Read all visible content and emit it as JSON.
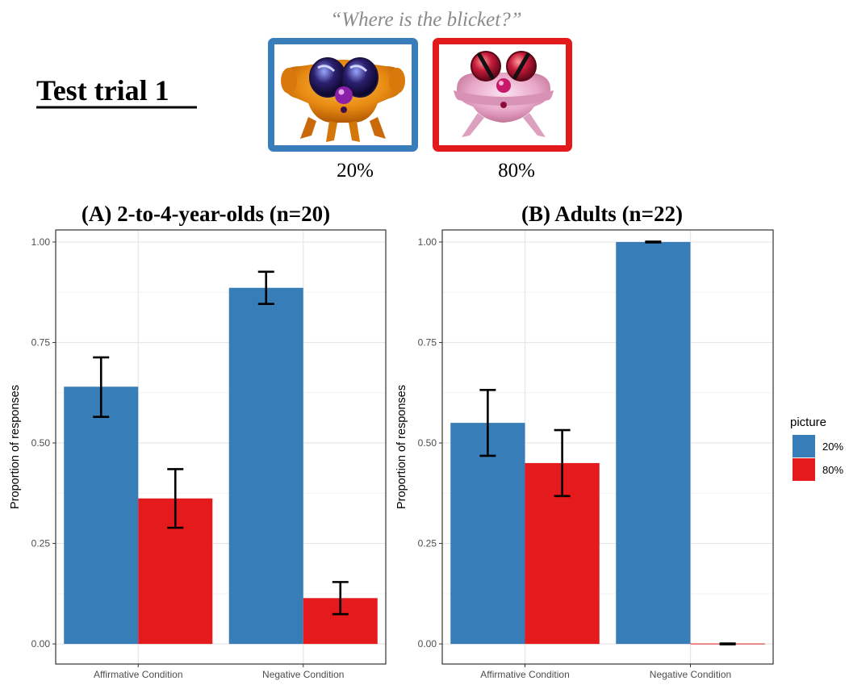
{
  "header": {
    "question": "“Where is the blicket?”",
    "trial_title": "Test trial 1",
    "pictures": [
      {
        "label": "20%",
        "frame_color": "#3A7DBB",
        "icon": "orange-alien-creature-icon"
      },
      {
        "label": "80%",
        "frame_color": "#E31A1C",
        "icon": "pink-alien-creature-icon"
      }
    ]
  },
  "legend": {
    "title": "picture",
    "items": [
      {
        "label": "20%",
        "color": "#377EB8"
      },
      {
        "label": "80%",
        "color": "#E41A1C"
      }
    ]
  },
  "chart_data": [
    {
      "type": "bar",
      "title": "(A) 2-to-4-year-olds (n=20)",
      "xlabel": "",
      "ylabel": "Proportion of responses",
      "categories": [
        "Affirmative Condition",
        "Negative Condition"
      ],
      "ylim": [
        0,
        1.03
      ],
      "yticks": [
        "0.00",
        "0.25",
        "0.50",
        "0.75",
        "1.00"
      ],
      "grid": true,
      "series": [
        {
          "name": "20%",
          "color": "#377EB8",
          "values": [
            0.64,
            0.886
          ],
          "err_low": [
            0.565,
            0.846
          ],
          "err_high": [
            0.713,
            0.926
          ]
        },
        {
          "name": "80%",
          "color": "#E41A1C",
          "values": [
            0.362,
            0.114
          ],
          "err_low": [
            0.289,
            0.074
          ],
          "err_high": [
            0.435,
            0.154
          ]
        }
      ]
    },
    {
      "type": "bar",
      "title": "(B) Adults (n=22)",
      "xlabel": "",
      "ylabel": "Proportion of responses",
      "categories": [
        "Affirmative Condition",
        "Negative Condition"
      ],
      "ylim": [
        0,
        1.03
      ],
      "yticks": [
        "0.00",
        "0.25",
        "0.50",
        "0.75",
        "1.00"
      ],
      "grid": true,
      "series": [
        {
          "name": "20%",
          "color": "#377EB8",
          "values": [
            0.55,
            1.0
          ],
          "err_low": [
            0.468,
            0.999
          ],
          "err_high": [
            0.632,
            1.001
          ]
        },
        {
          "name": "80%",
          "color": "#E41A1C",
          "values": [
            0.45,
            0.0
          ],
          "err_low": [
            0.368,
            -0.001
          ],
          "err_high": [
            0.532,
            0.001
          ]
        }
      ]
    }
  ]
}
